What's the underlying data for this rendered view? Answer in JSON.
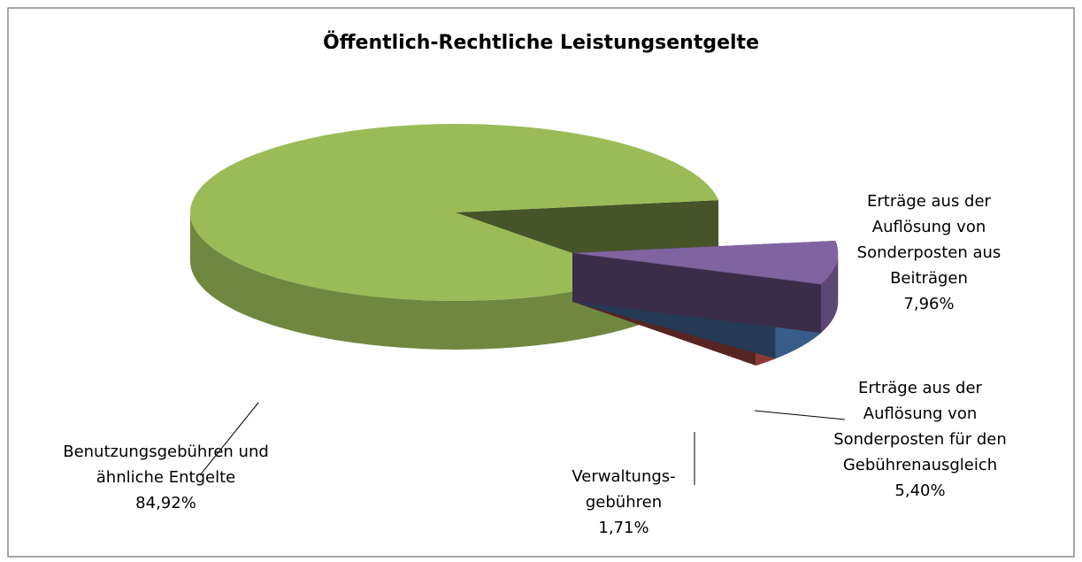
{
  "chart_data": {
    "type": "pie",
    "title": "Öffentlich-Rechtliche Leistungsentgelte",
    "categories": [
      "Erträge aus der Auflösung von Sonderposten aus Beiträgen",
      "Erträge aus der Auflösung von Sonderposten für den Gebührenausgleich",
      "Verwaltungs-gebühren",
      "Benutzungsgebühren und ähnliche Entgelte"
    ],
    "values": [
      7.96,
      5.4,
      1.71,
      84.92
    ],
    "value_labels": [
      "7,96%",
      "5,40%",
      "1,71%",
      "84,92%"
    ],
    "colors": [
      "#8064a2",
      "#4f81bd",
      "#c0504d",
      "#9bbb59"
    ],
    "exploded": [
      true,
      true,
      true,
      false
    ]
  }
}
